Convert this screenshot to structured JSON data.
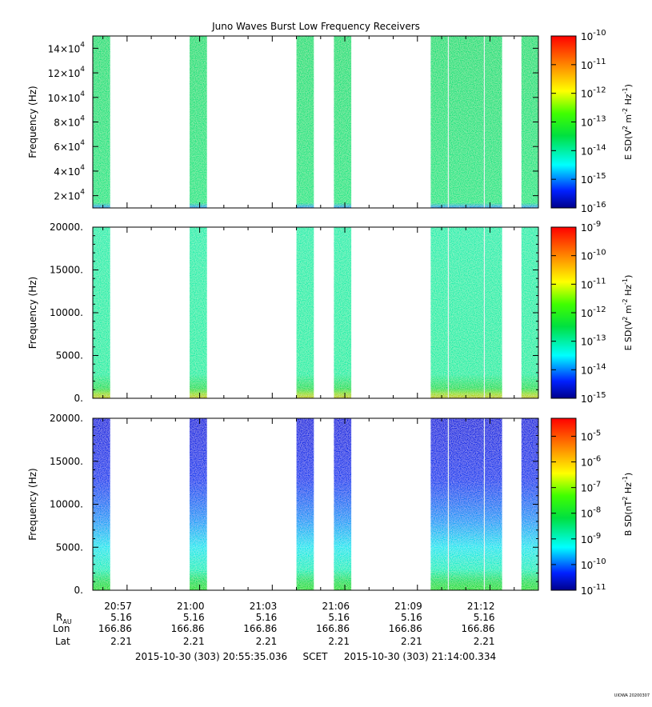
{
  "title": "Juno Waves Burst Low Frequency Receivers",
  "footer": {
    "start": "2015-10-30 (303) 20:55:35.036",
    "frame": "SCET",
    "end": "2015-10-30 (303) 21:14:00.334",
    "credit": "UIOWA 20200307"
  },
  "ephemeris": {
    "row_labels": [
      "R",
      "Lon",
      "Lat"
    ],
    "r_subscript": "AU",
    "times": [
      "20:57",
      "21:00",
      "21:03",
      "21:06",
      "21:09",
      "21:12"
    ],
    "r_values": [
      "5.16",
      "5.16",
      "5.16",
      "5.16",
      "5.16",
      "5.16"
    ],
    "lon_values": [
      "166.86",
      "166.86",
      "166.86",
      "166.86",
      "166.86",
      "166.86"
    ],
    "lat_values": [
      "2.21",
      "2.21",
      "2.21",
      "2.21",
      "2.21",
      "2.21"
    ]
  },
  "chart_data": [
    {
      "type": "heatmap",
      "panel": "top",
      "ylabel": "Frequency (Hz)",
      "ylim": [
        10000,
        150000
      ],
      "yticks": [
        20000,
        40000,
        60000,
        80000,
        100000,
        120000,
        140000
      ],
      "ytick_labels": [
        [
          "2×10",
          "4"
        ],
        [
          "4×10",
          "4"
        ],
        [
          "6×10",
          "4"
        ],
        [
          "8×10",
          "4"
        ],
        [
          "10×10",
          "4"
        ],
        [
          "12×10",
          "4"
        ],
        [
          "14×10",
          "4"
        ]
      ],
      "colorbar_label": "E SD (V2 m-2 Hz-1)",
      "colorbar_ticks": [
        [
          "10",
          "-16"
        ],
        [
          "10",
          "-15"
        ],
        [
          "10",
          "-14"
        ],
        [
          "10",
          "-13"
        ],
        [
          "10",
          "-12"
        ],
        [
          "10",
          "-11"
        ],
        [
          "10",
          "-10"
        ]
      ],
      "clim_log10": [
        -16,
        -10
      ],
      "x_range": [
        "20:55:35",
        "21:14:00"
      ],
      "data_intervals": [
        [
          "20:55:35",
          "20:56:18"
        ],
        [
          "20:59:35",
          "21:00:18"
        ],
        [
          "21:04:00",
          "21:04:43"
        ],
        [
          "21:05:33",
          "21:06:16"
        ],
        [
          "21:09:33",
          "21:12:30"
        ],
        [
          "21:13:18",
          "21:14:00"
        ]
      ],
      "typical_log10_sd": -13.5
    },
    {
      "type": "heatmap",
      "panel": "middle",
      "ylabel": "Frequency (Hz)",
      "ylim": [
        0,
        20000
      ],
      "yticks": [
        0,
        5000,
        10000,
        15000,
        20000
      ],
      "ytick_labels": [
        "0.",
        "5000.",
        "10000.",
        "15000.",
        "20000."
      ],
      "colorbar_label": "E SD (V2 m-2 Hz-1)",
      "colorbar_ticks": [
        [
          "10",
          "-15"
        ],
        [
          "10",
          "-14"
        ],
        [
          "10",
          "-13"
        ],
        [
          "10",
          "-12"
        ],
        [
          "10",
          "-11"
        ],
        [
          "10",
          "-10"
        ],
        [
          "10",
          "-9"
        ]
      ],
      "clim_log10": [
        -15,
        -9
      ],
      "x_range": [
        "20:55:35",
        "21:14:00"
      ],
      "data_intervals": [
        [
          "20:55:35",
          "20:56:18"
        ],
        [
          "20:59:35",
          "21:00:18"
        ],
        [
          "21:04:00",
          "21:04:43"
        ],
        [
          "21:05:33",
          "21:06:16"
        ],
        [
          "21:09:33",
          "21:12:30"
        ],
        [
          "21:13:18",
          "21:14:00"
        ]
      ],
      "typical_log10_sd": -13
    },
    {
      "type": "heatmap",
      "panel": "bottom",
      "ylabel": "Frequency (Hz)",
      "ylim": [
        0,
        20000
      ],
      "yticks": [
        0,
        5000,
        10000,
        15000,
        20000
      ],
      "ytick_labels": [
        "0.",
        "5000.",
        "10000.",
        "15000.",
        "20000."
      ],
      "colorbar_label": "B SD (nT2 Hz-1)",
      "colorbar_ticks": [
        [
          "10",
          "-11"
        ],
        [
          "10",
          "-10"
        ],
        [
          "10",
          "-9"
        ],
        [
          "10",
          "-8"
        ],
        [
          "10",
          "-7"
        ],
        [
          "10",
          "-6"
        ],
        [
          "10",
          "-5"
        ]
      ],
      "clim_log10": [
        -11,
        -4.3
      ],
      "x_range": [
        "20:55:35",
        "21:14:00"
      ],
      "data_intervals": [
        [
          "20:55:35",
          "20:56:18"
        ],
        [
          "20:59:35",
          "21:00:18"
        ],
        [
          "21:04:00",
          "21:04:43"
        ],
        [
          "21:05:33",
          "21:06:16"
        ],
        [
          "21:09:33",
          "21:12:30"
        ],
        [
          "21:13:18",
          "21:14:00"
        ]
      ],
      "typical_log10_sd": -10
    }
  ]
}
